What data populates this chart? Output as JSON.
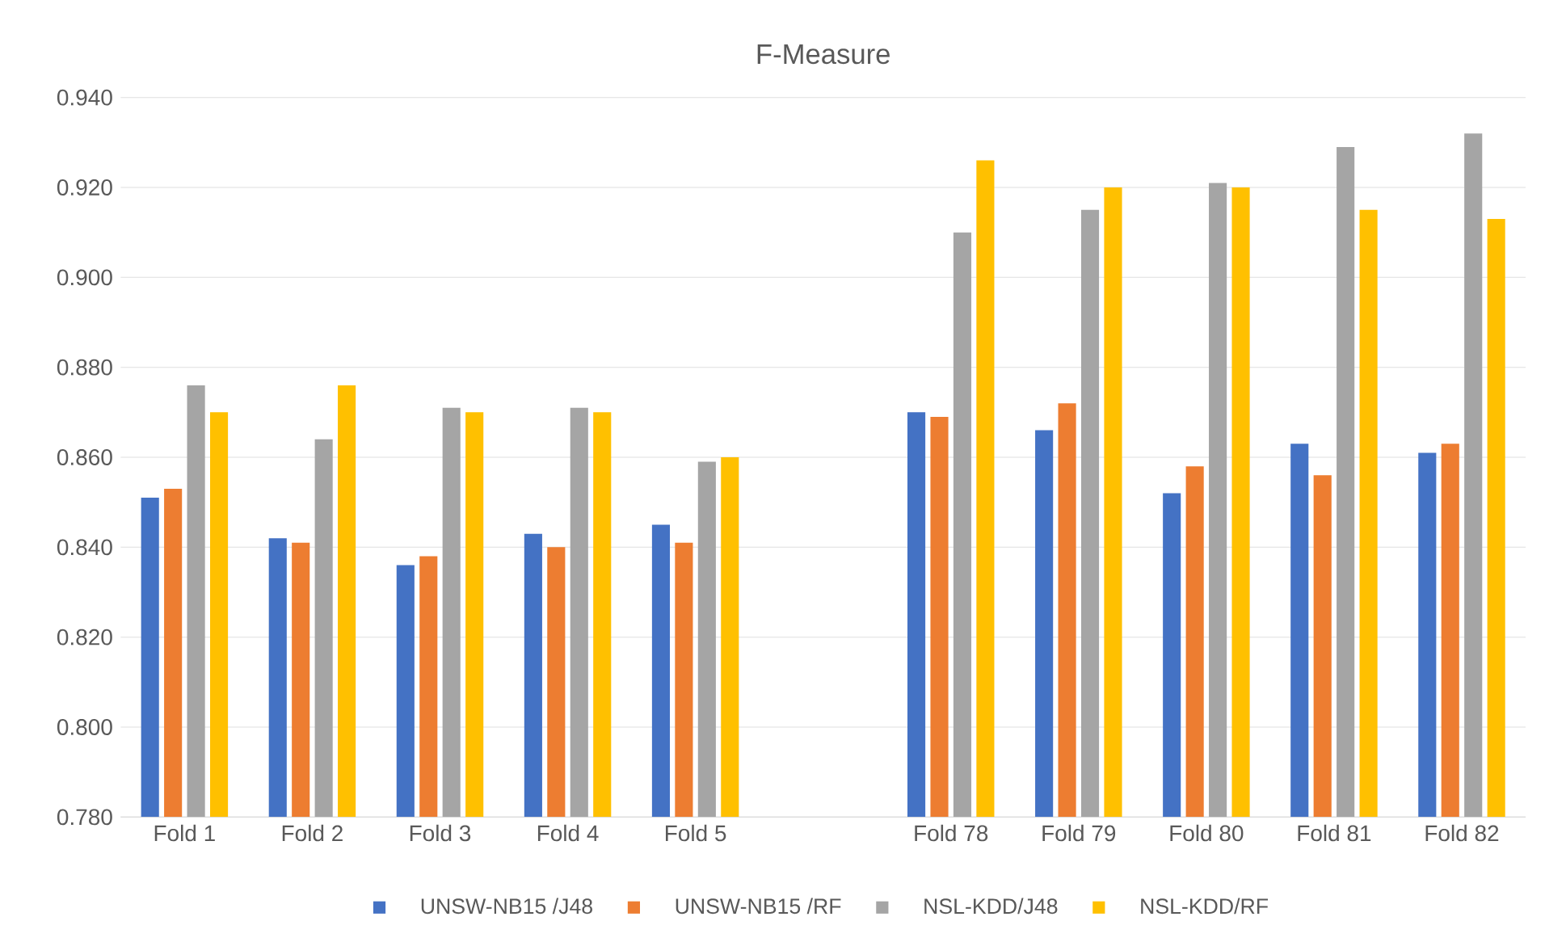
{
  "chart_data": {
    "type": "bar",
    "title": "F-Measure",
    "categories": [
      "Fold 1",
      "Fold 2",
      "Fold 3",
      "Fold 4",
      "Fold 5",
      null,
      "Fold 78",
      "Fold 79",
      "Fold 80",
      "Fold 81",
      "Fold 82"
    ],
    "series": [
      {
        "name": "UNSW-NB15 /J48",
        "color": "#4472c4",
        "values": [
          0.851,
          0.842,
          0.836,
          0.843,
          0.845,
          null,
          0.87,
          0.866,
          0.852,
          0.863,
          0.861
        ]
      },
      {
        "name": "UNSW-NB15 /RF",
        "color": "#ed7d31",
        "values": [
          0.853,
          0.841,
          0.838,
          0.84,
          0.841,
          null,
          0.869,
          0.872,
          0.858,
          0.856,
          0.863
        ]
      },
      {
        "name": "NSL-KDD/J48",
        "color": "#a5a5a5",
        "values": [
          0.876,
          0.864,
          0.871,
          0.871,
          0.859,
          null,
          0.91,
          0.915,
          0.921,
          0.929,
          0.932
        ]
      },
      {
        "name": "NSL-KDD/RF",
        "color": "#ffc000",
        "values": [
          0.87,
          0.876,
          0.87,
          0.87,
          0.86,
          null,
          0.926,
          0.92,
          0.92,
          0.915,
          0.913
        ]
      }
    ],
    "ylim": [
      0.78,
      0.94
    ],
    "yticks": [
      {
        "value": 0.78,
        "label": "0.780"
      },
      {
        "value": 0.8,
        "label": "0.800"
      },
      {
        "value": 0.82,
        "label": "0.820"
      },
      {
        "value": 0.84,
        "label": "0.840"
      },
      {
        "value": 0.86,
        "label": "0.860"
      },
      {
        "value": 0.88,
        "label": "0.880"
      },
      {
        "value": 0.9,
        "label": "0.900"
      },
      {
        "value": 0.92,
        "label": "0.920"
      },
      {
        "value": 0.94,
        "label": "0.940"
      }
    ],
    "grid": "y",
    "legend": "bottom"
  }
}
